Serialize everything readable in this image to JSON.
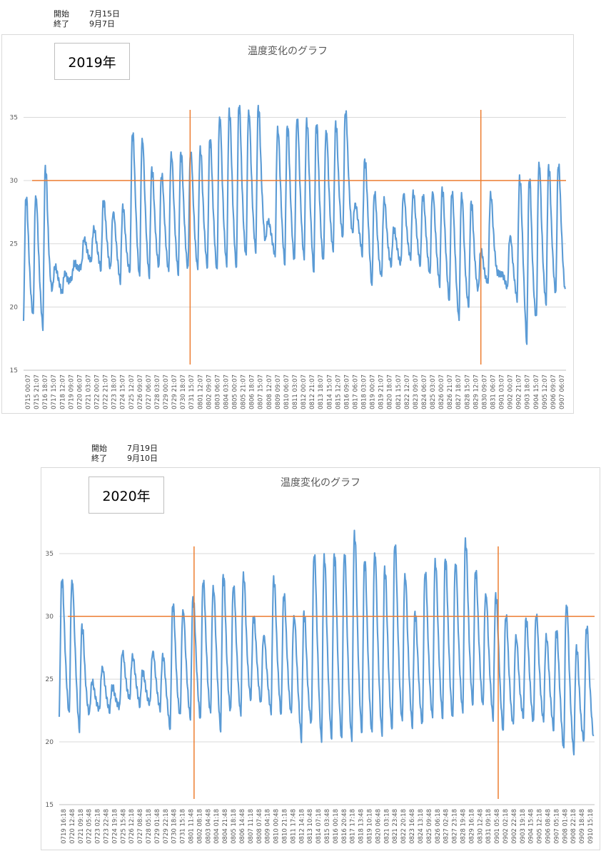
{
  "charts": [
    {
      "start_label": "開始",
      "start_value": "7月15日",
      "end_label": "終了",
      "end_value": "9月7日",
      "year_label": "2019年"
    },
    {
      "start_label": "開始",
      "start_value": "7月19日",
      "end_label": "終了",
      "end_value": "9月10日",
      "year_label": "2020年"
    }
  ],
  "chart_data": [
    {
      "type": "line",
      "title": "温度変化のグラフ",
      "ylim": [
        15,
        37
      ],
      "yticks": [
        15,
        20,
        25,
        30,
        35
      ],
      "grid": "horizontal",
      "color": "#5b9bd5",
      "ref_color": "#ed7d31",
      "threshold_y": 30,
      "vlines_at_day": [
        17.21,
        47.25
      ],
      "x_tick_labels": [
        "0715 00:07",
        "0715 21:07",
        "0716 18:07",
        "0717 15:07",
        "0718 12:07",
        "0719 09:07",
        "0720 06:07",
        "0721 03:07",
        "0722 00:07",
        "0722 21:07",
        "0723 18:07",
        "0724 15:07",
        "0725 12:07",
        "0726 09:07",
        "0727 06:07",
        "0728 03:07",
        "0729 00:07",
        "0729 21:07",
        "0730 18:07",
        "0731 15:07",
        "0801 12:07",
        "0802 09:07",
        "0803 06:07",
        "0804 03:07",
        "0805 00:07",
        "0805 21:07",
        "0806 18:07",
        "0807 15:07",
        "0808 12:07",
        "0809 09:07",
        "0810 06:07",
        "0811 03:07",
        "0812 00:07",
        "0812 21:07",
        "0813 18:07",
        "0814 15:07",
        "0815 12:07",
        "0816 09:07",
        "0817 06:07",
        "0818 03:07",
        "0819 00:07",
        "0819 21:07",
        "0820 18:07",
        "0821 15:07",
        "0822 12:07",
        "0823 09:07",
        "0824 06:07",
        "0825 03:07",
        "0826 00:07",
        "0826 21:07",
        "0827 18:07",
        "0828 15:07",
        "0829 12:07",
        "0830 09:07",
        "0831 06:07",
        "0901 03:07",
        "0902 00:07",
        "0902 21:07",
        "0903 18:07",
        "0904 15:07",
        "0905 12:07",
        "0906 09:07",
        "0907 06:07"
      ],
      "daily_max": [
        28.7,
        28.8,
        31.0,
        23.2,
        22.7,
        23.5,
        25.4,
        26.2,
        28.4,
        27.5,
        27.9,
        33.8,
        33.3,
        30.9,
        30.5,
        32.1,
        32.2,
        32.3,
        32.5,
        33.3,
        35.1,
        35.5,
        36.0,
        35.5,
        35.8,
        26.8,
        34.1,
        34.3,
        35.0,
        34.7,
        34.5,
        34.0,
        34.5,
        35.5,
        28.1,
        31.6,
        29.1,
        28.5,
        26.2,
        29.0,
        29.0,
        28.8,
        29.1,
        29.3,
        29.1,
        28.9,
        28.3,
        24.5,
        28.9,
        22.6,
        25.6,
        30.2,
        30.2,
        31.4,
        31.1,
        31.3
      ],
      "daily_min": [
        18.9,
        19.3,
        18.4,
        21.5,
        21.1,
        22.4,
        23.3,
        23.7,
        23.0,
        23.0,
        22.0,
        22.9,
        22.3,
        22.5,
        23.2,
        22.8,
        22.7,
        23.0,
        23.1,
        23.2,
        22.8,
        23.4,
        23.1,
        24.0,
        24.5,
        25.2,
        24.0,
        23.5,
        23.6,
        23.9,
        22.8,
        23.6,
        24.6,
        25.6,
        25.8,
        24.2,
        21.5,
        22.5,
        23.4,
        23.4,
        23.9,
        23.3,
        22.5,
        21.8,
        20.4,
        18.9,
        20.2,
        21.4,
        22.0,
        22.7,
        21.4,
        20.6,
        17.0,
        19.2,
        20.4,
        21.1
      ]
    },
    {
      "type": "line",
      "title": "温度変化のグラフ",
      "ylim": [
        15,
        37
      ],
      "yticks": [
        15,
        20,
        25,
        30,
        35
      ],
      "grid": "horizontal",
      "color": "#5b9bd5",
      "ref_color": "#ed7d31",
      "threshold_y": 30,
      "vlines_at_day": [
        13.36,
        43.5
      ],
      "x_tick_labels": [
        "0719 16:18",
        "0720 12:48",
        "0721 09:18",
        "0722 05:48",
        "0723 02:18",
        "0723 22:48",
        "0724 19:18",
        "0725 15:48",
        "0726 12:18",
        "0727 08:48",
        "0728 05:18",
        "0729 01:48",
        "0729 22:18",
        "0730 18:48",
        "0731 15:18",
        "0801 11:48",
        "0802 08:18",
        "0803 04:48",
        "0804 01:18",
        "0804 21:48",
        "0805 18:18",
        "0806 14:48",
        "0807 11:18",
        "0808 07:48",
        "0809 04:18",
        "0810 00:48",
        "0810 21:18",
        "0811 17:48",
        "0812 14:18",
        "0813 10:48",
        "0814 07:18",
        "0815 03:48",
        "0816 00:18",
        "0816 20:48",
        "0817 17:18",
        "0818 13:48",
        "0819 10:18",
        "0820 06:48",
        "0821 03:18",
        "0821 23:48",
        "0822 20:18",
        "0823 16:48",
        "0824 13:18",
        "0825 09:48",
        "0826 06:18",
        "0827 02:48",
        "0827 23:18",
        "0828 19:48",
        "0829 16:18",
        "0830 12:48",
        "0831 09:18",
        "0901 05:48",
        "0902 02:18",
        "0902 22:48",
        "0903 19:18",
        "0904 15:48",
        "0905 12:18",
        "0906 08:48",
        "0907 05:18",
        "0908 01:48",
        "0908 22:18",
        "0909 18:48",
        "0910 15:18"
      ],
      "daily_max": [
        33.0,
        32.9,
        29.2,
        24.8,
        25.9,
        24.4,
        27.2,
        26.8,
        25.6,
        27.2,
        26.8,
        31.0,
        30.5,
        31.4,
        32.9,
        32.3,
        33.3,
        32.5,
        33.3,
        30.0,
        28.5,
        33.0,
        31.8,
        30.0,
        30.3,
        35.0,
        34.8,
        35.0,
        35.1,
        36.6,
        34.5,
        35.1,
        33.8,
        35.8,
        33.3,
        30.3,
        33.6,
        34.4,
        34.6,
        34.3,
        36.0,
        33.7,
        31.8,
        31.7,
        30.1,
        28.4,
        29.8,
        30.2,
        28.4,
        28.9,
        31.0,
        27.5,
        29.2
      ],
      "daily_min": [
        22.0,
        22.2,
        21.0,
        22.3,
        22.6,
        22.5,
        22.8,
        23.5,
        22.9,
        23.0,
        22.6,
        21.0,
        22.1,
        22.0,
        21.8,
        22.3,
        21.0,
        22.5,
        22.2,
        23.5,
        23.0,
        22.4,
        22.2,
        22.2,
        20.2,
        21.6,
        20.0,
        20.4,
        20.1,
        20.2,
        20.8,
        20.6,
        20.7,
        21.0,
        21.6,
        21.3,
        21.4,
        22.0,
        22.0,
        21.8,
        22.5,
        23.0,
        22.8,
        21.9,
        20.8,
        21.4,
        22.1,
        21.5,
        21.7,
        21.0,
        19.3,
        19.2,
        20.2
      ]
    }
  ]
}
